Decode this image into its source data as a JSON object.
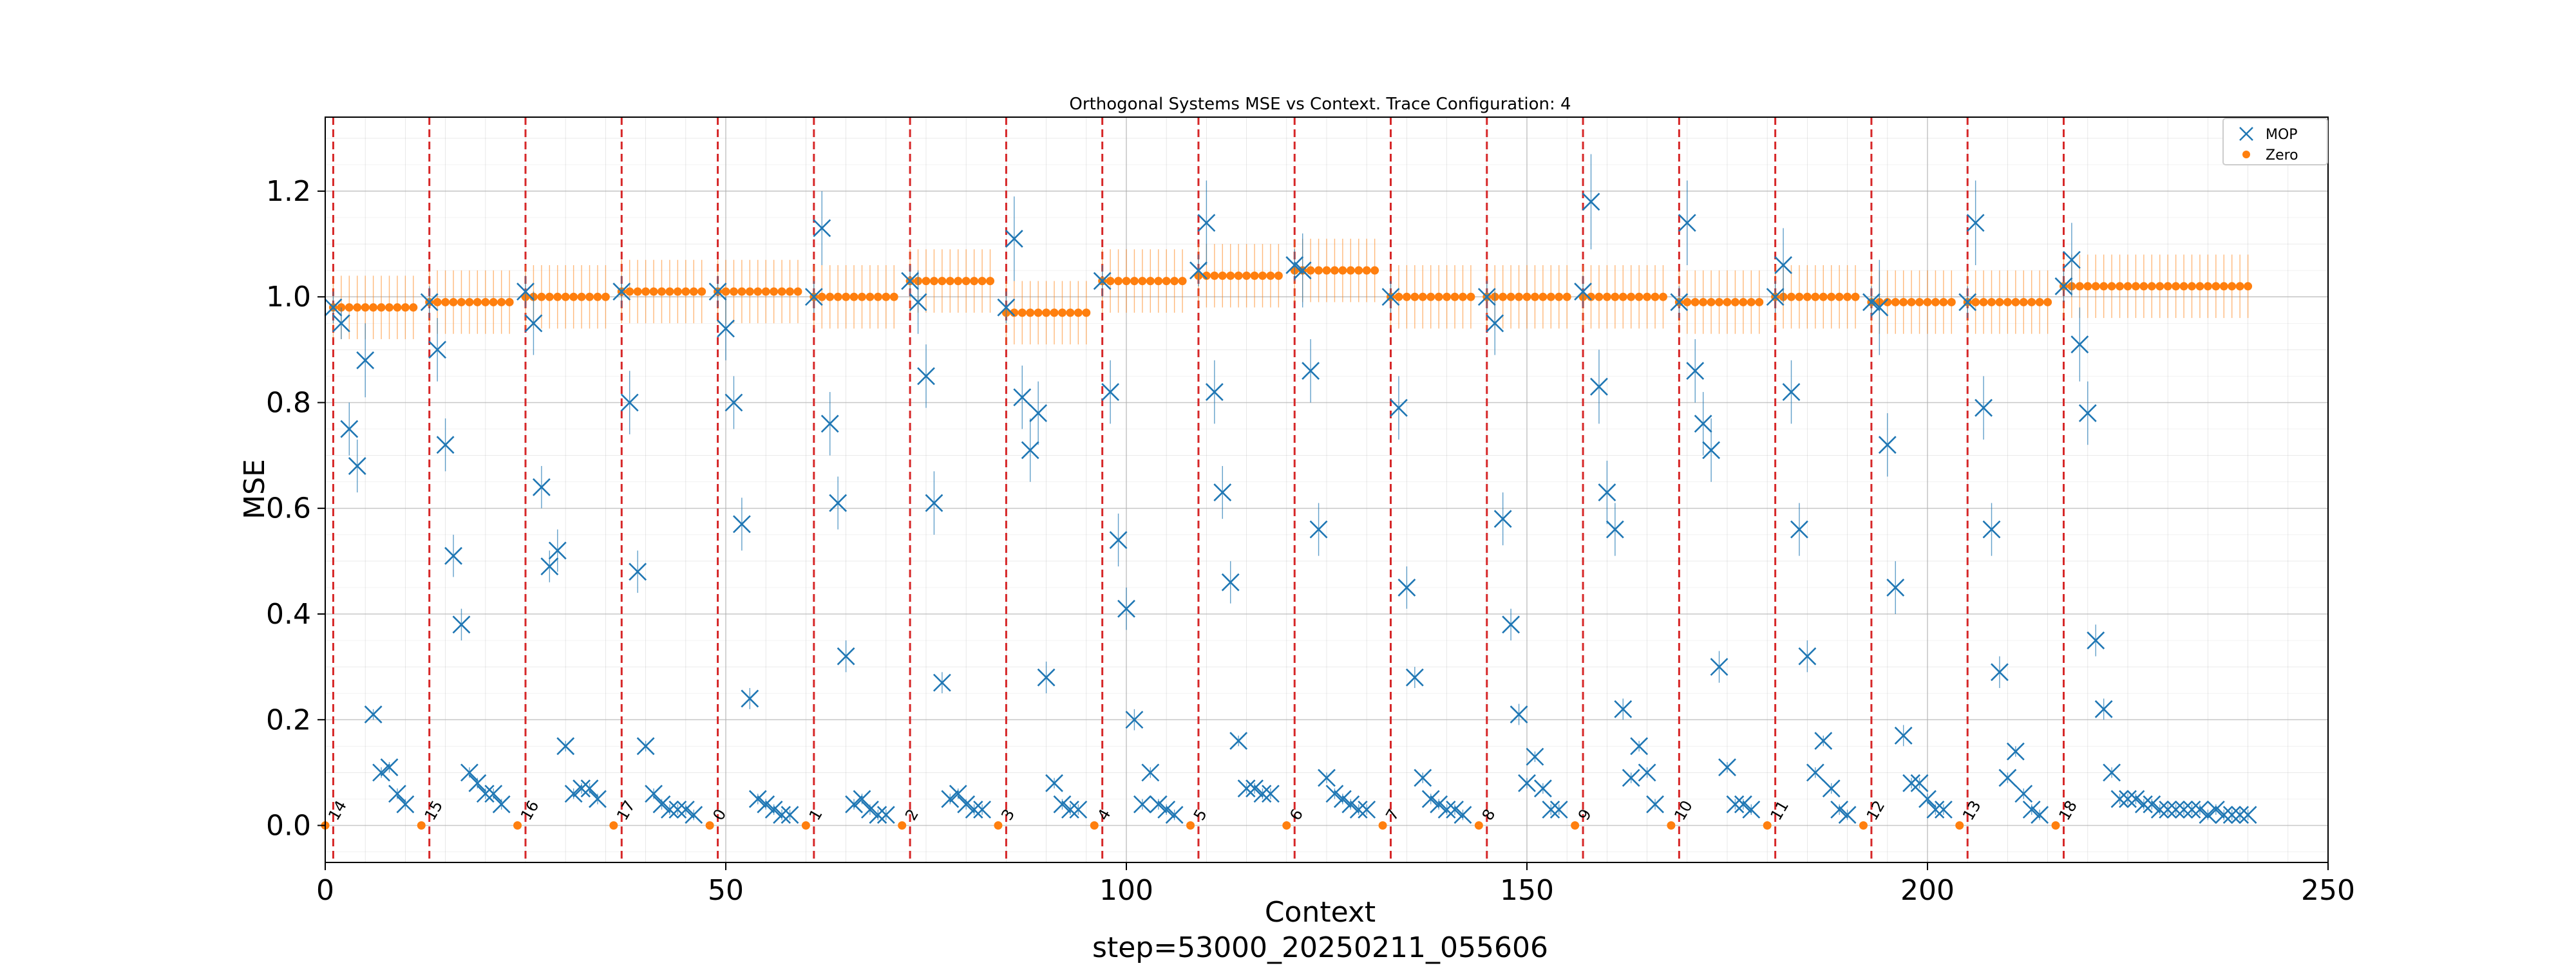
{
  "chart_data": {
    "type": "scatter",
    "title": "Orthogonal Systems MSE vs Context. Trace Configuration: 4",
    "xlabel": "Context",
    "ylabel": "MSE",
    "footer": "step=53000_20250211_055606",
    "xlim": [
      0,
      250
    ],
    "ylim": [
      -0.07,
      1.34
    ],
    "xticks": [
      0,
      50,
      100,
      150,
      200,
      250
    ],
    "yticks": [
      0.0,
      0.2,
      0.4,
      0.6,
      0.8,
      1.0,
      1.2
    ],
    "grid": true,
    "legend_position": "top-right",
    "colors": {
      "mop": "#1f77b4",
      "zero": "#ff7f0e",
      "boundary": "#d62728",
      "grid": "#b0b0b0"
    },
    "boundaries": [
      1,
      13,
      25,
      37,
      49,
      61,
      73,
      85,
      97,
      109,
      121,
      133,
      145,
      157,
      169,
      181,
      193,
      205,
      217
    ],
    "segment_labels": [
      "14",
      "15",
      "16",
      "17",
      "0",
      "1",
      "2",
      "3",
      "4",
      "5",
      "6",
      "7",
      "8",
      "9",
      "10",
      "11",
      "12",
      "13",
      "18"
    ],
    "series": [
      {
        "name": "MOP",
        "marker": "x",
        "x": [
          1,
          2,
          3,
          4,
          5,
          6,
          7,
          8,
          9,
          10,
          11,
          12,
          13,
          14,
          15,
          16,
          17,
          18,
          19,
          20,
          21,
          22,
          23,
          24,
          25,
          26,
          27,
          28,
          29,
          30,
          31,
          32,
          33,
          34,
          35,
          36,
          37,
          38,
          39,
          40,
          41,
          42,
          43,
          44,
          45,
          46,
          47,
          48,
          49,
          50,
          51,
          52,
          53,
          54,
          55,
          56,
          57,
          58,
          59,
          60,
          61,
          62,
          63,
          64,
          65,
          66,
          67,
          68,
          69,
          70,
          71,
          72,
          73,
          74,
          75,
          76,
          77,
          78,
          79,
          80,
          81,
          82,
          83,
          84,
          85,
          86,
          87,
          88,
          89,
          90,
          91,
          92,
          93,
          94,
          95,
          96,
          97,
          98,
          99,
          100,
          101,
          102,
          103,
          104,
          105,
          106,
          107,
          108,
          109,
          110,
          111,
          112,
          113,
          114,
          115,
          116,
          117,
          118,
          119,
          120,
          121,
          122,
          123,
          124,
          125,
          126,
          127,
          128,
          129,
          130,
          131,
          132,
          133,
          134,
          135,
          136,
          137,
          138,
          139,
          140,
          141,
          142,
          143,
          144,
          145,
          146,
          147,
          148,
          149,
          150,
          151,
          152,
          153,
          154,
          155,
          156,
          157,
          158,
          159,
          160,
          161,
          162,
          163,
          164,
          165,
          166,
          167,
          168,
          169,
          170,
          171,
          172,
          173,
          174,
          175,
          176,
          177,
          178,
          179,
          180,
          181,
          182,
          183,
          184,
          185,
          186,
          187,
          188,
          189,
          190,
          191,
          192,
          193,
          194,
          195,
          196,
          197,
          198,
          199,
          200,
          201,
          202,
          203,
          204,
          205,
          206,
          207,
          208,
          209,
          210,
          211,
          212,
          213,
          214,
          215,
          216,
          217,
          218,
          219,
          220,
          221,
          222,
          223,
          224,
          225,
          226,
          227,
          228,
          229,
          230,
          231,
          232,
          233,
          234,
          235,
          236,
          237,
          238,
          239,
          240
        ],
        "y": [
          0.98,
          0.95,
          0.75,
          0.68,
          0.88,
          0.21,
          0.1,
          0.11,
          0.06,
          0.04,
          0,
          0,
          0.99,
          0.9,
          0.72,
          0.51,
          0.38,
          0.1,
          0.08,
          0.06,
          0.06,
          0.04,
          0,
          0,
          1.01,
          0.95,
          0.64,
          0.49,
          0.52,
          0.15,
          0.06,
          0.07,
          0.07,
          0.05,
          0,
          0,
          1.01,
          0.8,
          0.48,
          0.15,
          0.06,
          0.04,
          0.03,
          0.03,
          0.03,
          0.02,
          0,
          0,
          1.01,
          0.94,
          0.8,
          0.57,
          0.24,
          0.05,
          0.04,
          0.03,
          0.02,
          0.02,
          0,
          0,
          1.0,
          1.13,
          0.76,
          0.61,
          0.32,
          0.04,
          0.05,
          0.03,
          0.02,
          0.02,
          0,
          0,
          1.03,
          0.99,
          0.85,
          0.61,
          0.27,
          0.05,
          0.06,
          0.04,
          0.03,
          0.03,
          0,
          0,
          0.98,
          1.11,
          0.81,
          0.71,
          0.78,
          0.28,
          0.08,
          0.04,
          0.03,
          0.03,
          0,
          0,
          1.03,
          0.82,
          0.54,
          0.41,
          0.2,
          0.04,
          0.1,
          0.04,
          0.03,
          0.02,
          0,
          0,
          1.05,
          1.14,
          0.82,
          0.63,
          0.46,
          0.16,
          0.07,
          0.07,
          0.06,
          0.06,
          0,
          0,
          1.06,
          1.05,
          0.86,
          0.56,
          0.09,
          0.06,
          0.05,
          0.04,
          0.03,
          0.03,
          0,
          0,
          1.0,
          0.79,
          0.45,
          0.28,
          0.09,
          0.05,
          0.04,
          0.03,
          0.03,
          0.02,
          0,
          0,
          1.0,
          0.95,
          0.58,
          0.38,
          0.21,
          0.08,
          0.13,
          0.07,
          0.03,
          0.03,
          0,
          0,
          1.01,
          1.18,
          0.83,
          0.63,
          0.56,
          0.22,
          0.09,
          0.15,
          0.1,
          0.04,
          0,
          0,
          0.99,
          1.14,
          0.86,
          0.76,
          0.71,
          0.3,
          0.11,
          0.04,
          0.04,
          0.03,
          0,
          0,
          1.0,
          1.06,
          0.82,
          0.56,
          0.32,
          0.1,
          0.16,
          0.07,
          0.03,
          0.02,
          0,
          0,
          0.99,
          0.98,
          0.72,
          0.45,
          0.17,
          0.08,
          0.08,
          0.05,
          0.03,
          0.03,
          0,
          0,
          0.99,
          1.14,
          0.79,
          0.56,
          0.29,
          0.09,
          0.14,
          0.06,
          0.03,
          0.02,
          0,
          0,
          1.02,
          1.07,
          0.91,
          0.78,
          0.35,
          0.22,
          0.1,
          0.05,
          0.05,
          0.05,
          0.04,
          0.04,
          0.03,
          0.03,
          0.03,
          0.03,
          0.03,
          0.03,
          0.02,
          0.03,
          0.02,
          0.02,
          0.02,
          0.02
        ],
        "err": [
          0.03,
          0.03,
          0.05,
          0.05,
          0.07,
          0.01,
          0.01,
          0.01,
          0.01,
          0.01,
          0,
          0,
          0.03,
          0.06,
          0.05,
          0.04,
          0.03,
          0.01,
          0.01,
          0.01,
          0.01,
          0.01,
          0,
          0,
          0.03,
          0.06,
          0.04,
          0.03,
          0.04,
          0.01,
          0.01,
          0.01,
          0.01,
          0.01,
          0,
          0,
          0.03,
          0.06,
          0.04,
          0.01,
          0.01,
          0.01,
          0.01,
          0.01,
          0.01,
          0.01,
          0,
          0,
          0.03,
          0.06,
          0.05,
          0.05,
          0.02,
          0.01,
          0.01,
          0.01,
          0.01,
          0.01,
          0,
          0,
          0.03,
          0.07,
          0.06,
          0.05,
          0.03,
          0.01,
          0.01,
          0.01,
          0.01,
          0.01,
          0,
          0,
          0.03,
          0.06,
          0.06,
          0.06,
          0.02,
          0.01,
          0.01,
          0.01,
          0.01,
          0.01,
          0,
          0,
          0.03,
          0.08,
          0.06,
          0.06,
          0.06,
          0.03,
          0.01,
          0.01,
          0.01,
          0.01,
          0,
          0,
          0.03,
          0.06,
          0.05,
          0.04,
          0.02,
          0.01,
          0.01,
          0.01,
          0.01,
          0.01,
          0,
          0,
          0.03,
          0.08,
          0.06,
          0.05,
          0.04,
          0.01,
          0.01,
          0.01,
          0.01,
          0.01,
          0,
          0,
          0.03,
          0.07,
          0.06,
          0.05,
          0.01,
          0.01,
          0.01,
          0.01,
          0.01,
          0.01,
          0,
          0,
          0.03,
          0.06,
          0.04,
          0.02,
          0.01,
          0.01,
          0.01,
          0.01,
          0.01,
          0.01,
          0,
          0,
          0.03,
          0.06,
          0.05,
          0.03,
          0.02,
          0.01,
          0.01,
          0.01,
          0.01,
          0.01,
          0,
          0,
          0.03,
          0.09,
          0.07,
          0.06,
          0.05,
          0.02,
          0.01,
          0.01,
          0.01,
          0.01,
          0,
          0,
          0.03,
          0.08,
          0.06,
          0.06,
          0.06,
          0.03,
          0.01,
          0.01,
          0.01,
          0.01,
          0,
          0,
          0.03,
          0.07,
          0.06,
          0.05,
          0.03,
          0.01,
          0.01,
          0.01,
          0.01,
          0.01,
          0,
          0,
          0.03,
          0.09,
          0.06,
          0.05,
          0.02,
          0.01,
          0.01,
          0.01,
          0.01,
          0.01,
          0,
          0,
          0.03,
          0.08,
          0.06,
          0.05,
          0.03,
          0.01,
          0.01,
          0.01,
          0.01,
          0.01,
          0,
          0,
          0.03,
          0.07,
          0.07,
          0.06,
          0.03,
          0.02,
          0.01,
          0.01,
          0.01,
          0.01,
          0.01,
          0.01,
          0.01,
          0.01,
          0.01,
          0.01,
          0.01,
          0.01,
          0.01,
          0.01,
          0.01,
          0.01,
          0.01,
          0.01
        ]
      },
      {
        "name": "Zero",
        "marker": "o",
        "x": [
          0,
          1,
          2,
          3,
          4,
          5,
          6,
          7,
          8,
          9,
          10,
          11,
          12,
          13,
          14,
          15,
          16,
          17,
          18,
          19,
          20,
          21,
          22,
          23,
          24,
          25,
          26,
          27,
          28,
          29,
          30,
          31,
          32,
          33,
          34,
          35,
          36,
          37,
          38,
          39,
          40,
          41,
          42,
          43,
          44,
          45,
          46,
          47,
          48,
          49,
          50,
          51,
          52,
          53,
          54,
          55,
          56,
          57,
          58,
          59,
          60,
          61,
          62,
          63,
          64,
          65,
          66,
          67,
          68,
          69,
          70,
          71,
          72,
          73,
          74,
          75,
          76,
          77,
          78,
          79,
          80,
          81,
          82,
          83,
          84,
          85,
          86,
          87,
          88,
          89,
          90,
          91,
          92,
          93,
          94,
          95,
          96,
          97,
          98,
          99,
          100,
          101,
          102,
          103,
          104,
          105,
          106,
          107,
          108,
          109,
          110,
          111,
          112,
          113,
          114,
          115,
          116,
          117,
          118,
          119,
          120,
          121,
          122,
          123,
          124,
          125,
          126,
          127,
          128,
          129,
          130,
          131,
          132,
          133,
          134,
          135,
          136,
          137,
          138,
          139,
          140,
          141,
          142,
          143,
          144,
          145,
          146,
          147,
          148,
          149,
          150,
          151,
          152,
          153,
          154,
          155,
          156,
          157,
          158,
          159,
          160,
          161,
          162,
          163,
          164,
          165,
          166,
          167,
          168,
          169,
          170,
          171,
          172,
          173,
          174,
          175,
          176,
          177,
          178,
          179,
          180,
          181,
          182,
          183,
          184,
          185,
          186,
          187,
          188,
          189,
          190,
          191,
          192,
          193,
          194,
          195,
          196,
          197,
          198,
          199,
          200,
          201,
          202,
          203,
          204,
          205,
          206,
          207,
          208,
          209,
          210,
          211,
          212,
          213,
          214,
          215,
          216,
          217,
          218,
          219,
          220,
          221,
          222,
          223,
          224,
          225,
          226,
          227,
          228,
          229,
          230,
          231,
          232,
          233,
          234,
          235,
          236,
          237,
          238,
          239,
          240
        ],
        "y": [
          0,
          0.98,
          0.98,
          0.98,
          0.98,
          0.98,
          0.98,
          0.98,
          0.98,
          0.98,
          0.98,
          0.98,
          0,
          0.99,
          0.99,
          0.99,
          0.99,
          0.99,
          0.99,
          0.99,
          0.99,
          0.99,
          0.99,
          0.99,
          0,
          1.0,
          1.0,
          1.0,
          1.0,
          1.0,
          1.0,
          1.0,
          1.0,
          1.0,
          1.0,
          1.0,
          0,
          1.01,
          1.01,
          1.01,
          1.01,
          1.01,
          1.01,
          1.01,
          1.01,
          1.01,
          1.01,
          1.01,
          0,
          1.01,
          1.01,
          1.01,
          1.01,
          1.01,
          1.01,
          1.01,
          1.01,
          1.01,
          1.01,
          1.01,
          0,
          1.0,
          1.0,
          1.0,
          1.0,
          1.0,
          1.0,
          1.0,
          1.0,
          1.0,
          1.0,
          1.0,
          0,
          1.03,
          1.03,
          1.03,
          1.03,
          1.03,
          1.03,
          1.03,
          1.03,
          1.03,
          1.03,
          1.03,
          0,
          0.97,
          0.97,
          0.97,
          0.97,
          0.97,
          0.97,
          0.97,
          0.97,
          0.97,
          0.97,
          0.97,
          0,
          1.03,
          1.03,
          1.03,
          1.03,
          1.03,
          1.03,
          1.03,
          1.03,
          1.03,
          1.03,
          1.03,
          0,
          1.04,
          1.04,
          1.04,
          1.04,
          1.04,
          1.04,
          1.04,
          1.04,
          1.04,
          1.04,
          1.04,
          0,
          1.05,
          1.05,
          1.05,
          1.05,
          1.05,
          1.05,
          1.05,
          1.05,
          1.05,
          1.05,
          1.05,
          0,
          1.0,
          1.0,
          1.0,
          1.0,
          1.0,
          1.0,
          1.0,
          1.0,
          1.0,
          1.0,
          1.0,
          0,
          1.0,
          1.0,
          1.0,
          1.0,
          1.0,
          1.0,
          1.0,
          1.0,
          1.0,
          1.0,
          1.0,
          0,
          1.0,
          1.0,
          1.0,
          1.0,
          1.0,
          1.0,
          1.0,
          1.0,
          1.0,
          1.0,
          1.0,
          0,
          0.99,
          0.99,
          0.99,
          0.99,
          0.99,
          0.99,
          0.99,
          0.99,
          0.99,
          0.99,
          0.99,
          0,
          1.0,
          1.0,
          1.0,
          1.0,
          1.0,
          1.0,
          1.0,
          1.0,
          1.0,
          1.0,
          1.0,
          0,
          0.99,
          0.99,
          0.99,
          0.99,
          0.99,
          0.99,
          0.99,
          0.99,
          0.99,
          0.99,
          0.99,
          0,
          0.99,
          0.99,
          0.99,
          0.99,
          0.99,
          0.99,
          0.99,
          0.99,
          0.99,
          0.99,
          0.99,
          0,
          1.02,
          1.02,
          1.02,
          1.02,
          1.02,
          1.02,
          1.02,
          1.02,
          1.02,
          1.02,
          1.02,
          1.02,
          1.02,
          1.02,
          1.02,
          1.02,
          1.02,
          1.02,
          1.02,
          1.02,
          1.02,
          1.02,
          1.02,
          1.02
        ],
        "err": 0.06
      }
    ]
  }
}
